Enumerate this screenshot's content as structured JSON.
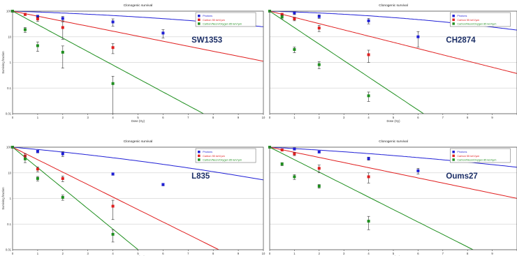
{
  "colors": {
    "series": [
      "#1f1fd6",
      "#e01f1f",
      "#1f8f1f"
    ],
    "grid": "#d6d6d6",
    "frame": "#555555"
  },
  "chart_data": [
    {
      "type": "scatter",
      "title": "Clonogenic survival",
      "cell_line": "SW1353",
      "xlabel": "Dose (Gy)",
      "ylabel": "Surviving fraction",
      "xlim": [
        0,
        10
      ],
      "ylim": [
        0.01,
        100
      ],
      "yscale": "log",
      "x_ticks": [
        "0",
        "1",
        "2",
        "3",
        "4",
        "5",
        "6",
        "7",
        "8",
        "9",
        "10"
      ],
      "y_ticks": [
        "0.01",
        "0.1",
        "1",
        "10",
        "100"
      ],
      "legend": "top-right",
      "grid": true,
      "series": [
        {
          "name": "Photons",
          "x": [
            0,
            1,
            2,
            4,
            6
          ],
          "y": [
            100,
            62,
            52,
            38,
            14
          ],
          "err": [
            0,
            8,
            10,
            12,
            5
          ],
          "fit": {
            "alpha": 0.07,
            "beta": 0.007
          }
        },
        {
          "name": "Carbon 55 keV/µm",
          "x": [
            0,
            0.5,
            1,
            2,
            4
          ],
          "y": [
            100,
            75,
            50,
            23,
            3.8
          ],
          "err": [
            0,
            8,
            10,
            15,
            1.6
          ],
          "fit": {
            "alpha": 0.45,
            "beta": 0.0
          }
        },
        {
          "name": "Carbon/Neon/Oxygen 85 keV/µm",
          "x": [
            0,
            0.5,
            1,
            2,
            4
          ],
          "y": [
            100,
            19,
            4.5,
            2.5,
            0.15
          ],
          "err": [
            0,
            4,
            1.8,
            1.9,
            0.14
          ],
          "fit": {
            "alpha": 1.21,
            "beta": 0.0
          }
        }
      ]
    },
    {
      "type": "scatter",
      "title": "Clonogenic survival",
      "cell_line": "CH2874",
      "xlabel": "Dose (Gy)",
      "ylabel": "",
      "xlim": [
        0,
        10
      ],
      "ylim": [
        0.01,
        100
      ],
      "yscale": "log",
      "x_ticks": [
        "0",
        "1",
        "2",
        "3",
        "4",
        "5",
        "6",
        "7",
        "8",
        "9",
        ""
      ],
      "y_ticks": [
        "",
        "",
        "",
        "",
        ""
      ],
      "legend": "top-right",
      "grid": true,
      "series": [
        {
          "name": "Photons",
          "x": [
            0,
            1,
            2,
            4,
            6
          ],
          "y": [
            100,
            85,
            62,
            42,
            10
          ],
          "err": [
            0,
            12,
            10,
            10,
            6
          ],
          "fit": {
            "alpha": 0.06,
            "beta": 0.011
          }
        },
        {
          "name": "Carbon 55 keV/µm",
          "x": [
            0,
            0.5,
            1,
            2,
            4
          ],
          "y": [
            100,
            75,
            50,
            22,
            2
          ],
          "err": [
            0,
            8,
            8,
            6,
            1
          ],
          "fit": {
            "alpha": 0.56,
            "beta": 0.0
          }
        },
        {
          "name": "Carbon/Neon/Oxygen 85 keV/µm",
          "x": [
            0,
            0.5,
            1,
            2,
            4
          ],
          "y": [
            100,
            60,
            3.2,
            0.82,
            0.05
          ],
          "err": [
            0,
            10,
            0.8,
            0.25,
            0.02
          ],
          "fit": {
            "alpha": 1.48,
            "beta": 0.0
          }
        }
      ]
    },
    {
      "type": "scatter",
      "title": "Clonogenic survival",
      "cell_line": "L835",
      "xlabel": "Dose (Gy)",
      "ylabel": "Surviving fraction",
      "xlim": [
        0,
        10
      ],
      "ylim": [
        0.01,
        100
      ],
      "yscale": "log",
      "x_ticks": [
        "0",
        "1",
        "2",
        "3",
        "4",
        "5",
        "6",
        "7",
        "8",
        "9",
        "10"
      ],
      "y_ticks": [
        "0.01",
        "0.1",
        "1",
        "10",
        "100"
      ],
      "legend": "top-right",
      "grid": true,
      "series": [
        {
          "name": "Photons",
          "x": [
            0,
            1,
            2,
            4,
            6
          ],
          "y": [
            100,
            68,
            55,
            9,
            3.5
          ],
          "err": [
            0,
            8,
            12,
            1,
            0.4
          ],
          "fit": {
            "alpha": 0.2,
            "beta": 0.0094
          }
        },
        {
          "name": "Carbon 55 keV/µm",
          "x": [
            0,
            0.5,
            1,
            2,
            4
          ],
          "y": [
            100,
            45,
            14,
            6,
            0.5
          ],
          "err": [
            0,
            10,
            3,
            1.5,
            0.35
          ],
          "fit": {
            "alpha": 1.12,
            "beta": 0.0
          }
        },
        {
          "name": "Carbon/Neon/Oxygen 85 keV/µm",
          "x": [
            0,
            0.5,
            1,
            2,
            4
          ],
          "y": [
            100,
            35,
            6,
            1.1,
            0.04
          ],
          "err": [
            0,
            10,
            1.2,
            0.25,
            0.02
          ],
          "fit": {
            "alpha": 1.84,
            "beta": 0.0
          }
        }
      ]
    },
    {
      "type": "scatter",
      "title": "Clonogenic survival",
      "cell_line": "Oums27",
      "xlabel": "Dose (Gy)",
      "ylabel": "",
      "xlim": [
        0,
        10
      ],
      "ylim": [
        0.01,
        100
      ],
      "yscale": "log",
      "x_ticks": [
        "0",
        "1",
        "2",
        "3",
        "4",
        "5",
        "6",
        "7",
        "8",
        "9",
        ""
      ],
      "y_ticks": [
        "",
        "",
        "",
        "",
        ""
      ],
      "legend": "top-right",
      "grid": true,
      "series": [
        {
          "name": "Photons",
          "x": [
            0,
            1,
            2,
            4,
            6
          ],
          "y": [
            100,
            85,
            65,
            36,
            12
          ],
          "err": [
            0,
            6,
            5,
            5,
            3
          ],
          "fit": {
            "alpha": 0.12,
            "beta": 0.006
          }
        },
        {
          "name": "Carbon 55 keV/µm",
          "x": [
            0,
            0.5,
            1,
            2,
            4
          ],
          "y": [
            100,
            78,
            55,
            15,
            7
          ],
          "err": [
            0,
            8,
            8,
            5,
            3
          ],
          "fit": {
            "alpha": 0.46,
            "beta": 0.0
          }
        },
        {
          "name": "Carbon/Neon/Oxygen 85 keV/µm",
          "x": [
            0,
            0.5,
            1,
            2,
            4
          ],
          "y": [
            100,
            22,
            7,
            3,
            0.13
          ],
          "err": [
            0,
            3,
            1.5,
            0.5,
            0.07
          ],
          "fit": {
            "alpha": 1.12,
            "beta": 0.0
          }
        }
      ]
    }
  ]
}
